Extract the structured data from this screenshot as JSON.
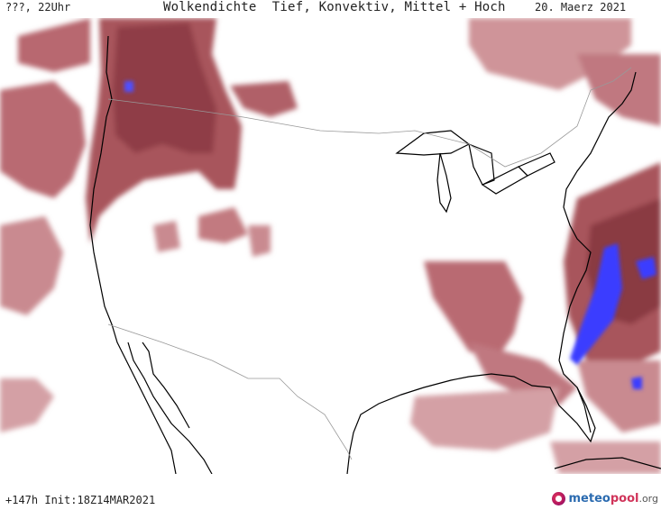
{
  "header": {
    "run_label": "???, 22Uhr",
    "title": "Wolkendichte  Tief, Konvektiv, Mittel + Hoch",
    "valid_date": "20. Maerz 2021"
  },
  "footer": {
    "forecast_info": "+147h Init:18Z14MAR2021",
    "brand_part1": "meteo",
    "brand_part2": "pool",
    "brand_part3": ".org"
  },
  "colors": {
    "cloud_light": "#e3b5b8",
    "cloud_mid": "#c27a80",
    "cloud_dense": "#a14a52",
    "cloud_max": "#8a3a42",
    "convective": "#3a3cff",
    "coastline": "#000000",
    "border": "#999999"
  }
}
